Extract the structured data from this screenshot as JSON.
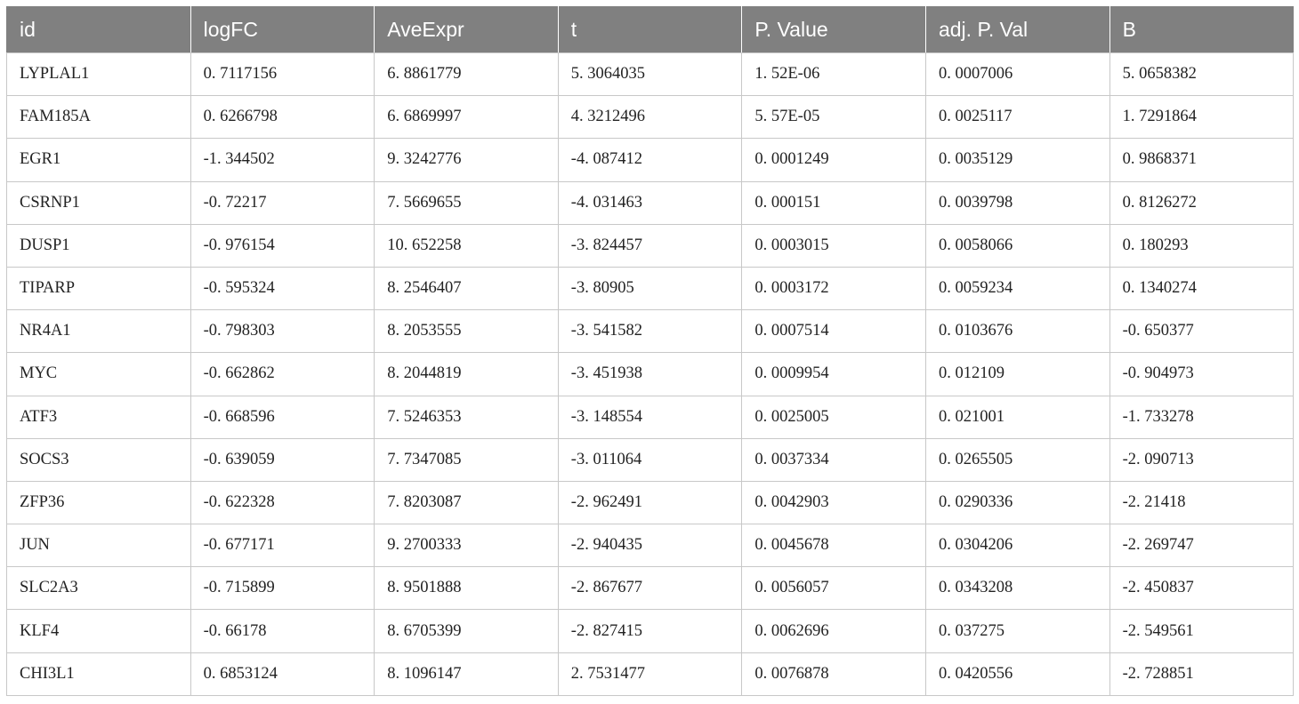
{
  "table": {
    "headers": [
      "id",
      "logFC",
      "AveExpr",
      "t",
      "P. Value",
      "adj. P. Val",
      "B"
    ],
    "rows": [
      [
        "LYPLAL1",
        "0. 7117156",
        "6. 8861779",
        "5. 3064035",
        "1. 52E-06",
        "0. 0007006",
        "5. 0658382"
      ],
      [
        "FAM185A",
        "0. 6266798",
        "6. 6869997",
        "4. 3212496",
        "5. 57E-05",
        "0. 0025117",
        "1. 7291864"
      ],
      [
        "EGR1",
        "-1. 344502",
        "9. 3242776",
        "-4. 087412",
        "0. 0001249",
        "0. 0035129",
        "0. 9868371"
      ],
      [
        "CSRNP1",
        "-0. 72217",
        "7. 5669655",
        "-4. 031463",
        "0. 000151",
        "0. 0039798",
        "0. 8126272"
      ],
      [
        "DUSP1",
        "-0. 976154",
        "10. 652258",
        "-3. 824457",
        "0. 0003015",
        "0. 0058066",
        "0. 180293"
      ],
      [
        "TIPARP",
        "-0. 595324",
        "8. 2546407",
        "-3. 80905",
        "0. 0003172",
        "0. 0059234",
        "0. 1340274"
      ],
      [
        "NR4A1",
        "-0. 798303",
        "8. 2053555",
        "-3. 541582",
        "0. 0007514",
        "0. 0103676",
        "-0. 650377"
      ],
      [
        "MYC",
        "-0. 662862",
        "8. 2044819",
        "-3. 451938",
        "0. 0009954",
        "0. 012109",
        "-0. 904973"
      ],
      [
        "ATF3",
        "-0. 668596",
        "7. 5246353",
        "-3. 148554",
        "0. 0025005",
        "0. 021001",
        "-1. 733278"
      ],
      [
        "SOCS3",
        "-0. 639059",
        "7. 7347085",
        "-3. 011064",
        "0. 0037334",
        "0. 0265505",
        "-2. 090713"
      ],
      [
        "ZFP36",
        "-0. 622328",
        "7. 8203087",
        "-2. 962491",
        "0. 0042903",
        "0. 0290336",
        "-2. 21418"
      ],
      [
        "JUN",
        "-0. 677171",
        "9. 2700333",
        "-2. 940435",
        "0. 0045678",
        "0. 0304206",
        "-2. 269747"
      ],
      [
        "SLC2A3",
        "-0. 715899",
        "8. 9501888",
        "-2. 867677",
        "0. 0056057",
        "0. 0343208",
        "-2. 450837"
      ],
      [
        "KLF4",
        "-0. 66178",
        "8. 6705399",
        "-2. 827415",
        "0. 0062696",
        "0. 037275",
        "-2. 549561"
      ],
      [
        "CHI3L1",
        "0. 6853124",
        "8. 1096147",
        "2. 7531477",
        "0. 0076878",
        "0. 0420556",
        "-2. 728851"
      ]
    ]
  }
}
